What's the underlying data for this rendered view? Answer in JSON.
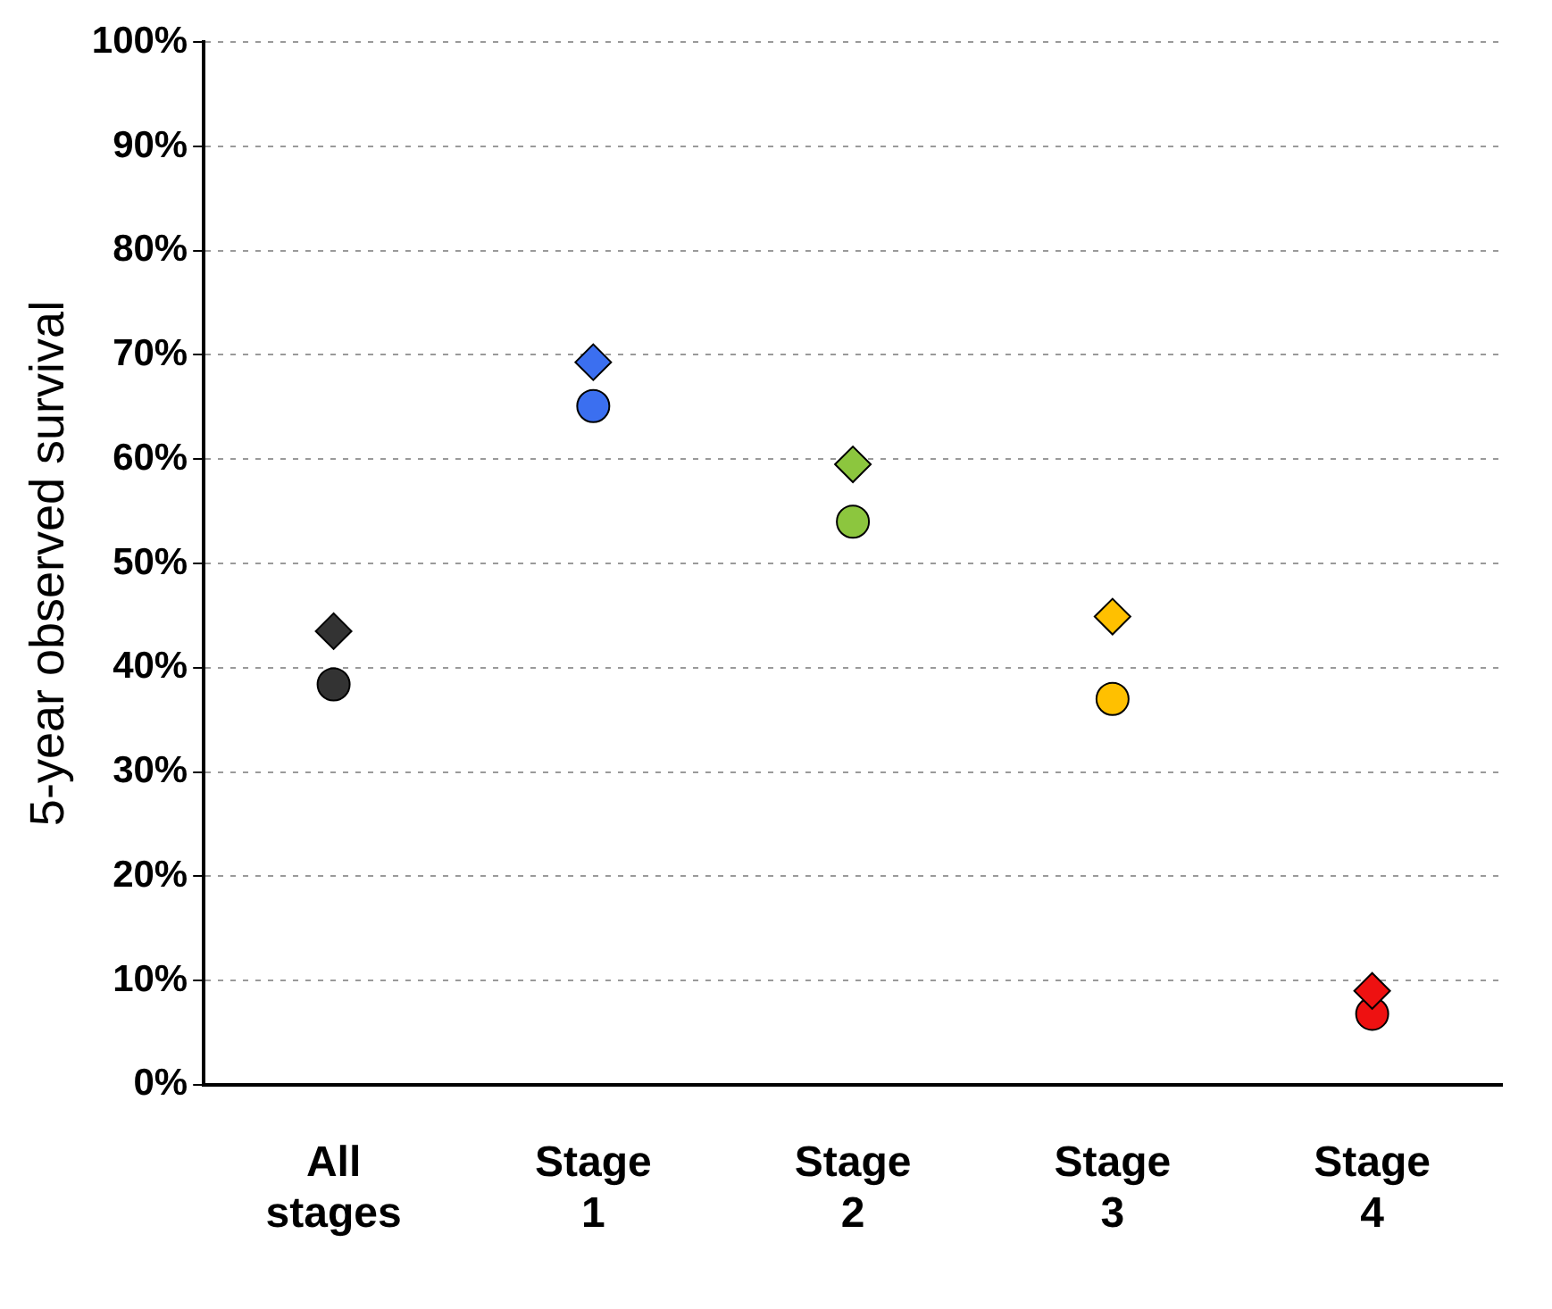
{
  "chart_data": {
    "type": "scatter",
    "ylabel": "5-year observed survival",
    "categories": [
      "All stages",
      "Stage 1",
      "Stage 2",
      "Stage 3",
      "Stage 4"
    ],
    "series": [
      {
        "marker": "diamond",
        "colors": [
          "#333333",
          "#3b6ff0",
          "#8cc63e",
          "#ffc000",
          "#ee1111"
        ],
        "values": [
          43.5,
          69.3,
          59.5,
          44.9,
          9.0
        ]
      },
      {
        "marker": "circle",
        "colors": [
          "#333333",
          "#3b6ff0",
          "#8cc63e",
          "#ffc000",
          "#ee1111"
        ],
        "values": [
          38.4,
          65.1,
          54.0,
          37.0,
          6.8
        ]
      }
    ],
    "ylim": [
      0,
      100
    ],
    "yticks": [
      {
        "value": 0,
        "label": "0%"
      },
      {
        "value": 10,
        "label": "10%"
      },
      {
        "value": 20,
        "label": "20%"
      },
      {
        "value": 30,
        "label": "30%"
      },
      {
        "value": 40,
        "label": "40%"
      },
      {
        "value": 50,
        "label": "50%"
      },
      {
        "value": 60,
        "label": "60%"
      },
      {
        "value": 70,
        "label": "70%"
      },
      {
        "value": 80,
        "label": "80%"
      },
      {
        "value": 90,
        "label": "90%"
      },
      {
        "value": 100,
        "label": "100%"
      }
    ],
    "grid": "y",
    "legend": false
  }
}
